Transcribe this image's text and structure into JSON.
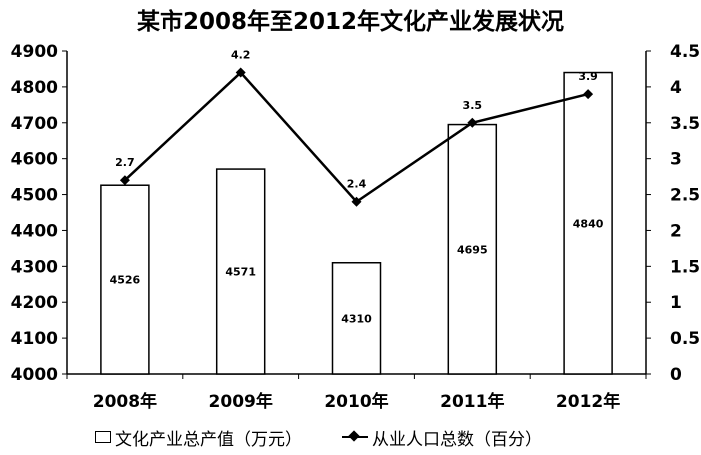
{
  "chart_data": {
    "type": "bar+line",
    "title": "某市2008年至2012年文化产业发展状况",
    "categories": [
      "2008年",
      "2009年",
      "2010年",
      "2011年",
      "2012年"
    ],
    "series": [
      {
        "name": "文化产业总产值（万元）",
        "type": "bar",
        "axis": "left",
        "values": [
          4526,
          4571,
          4310,
          4695,
          4840
        ],
        "labels": [
          "4526",
          "4571",
          "4310",
          "4695",
          "4840"
        ]
      },
      {
        "name": "从业人口总数（百分）",
        "type": "line",
        "axis": "right",
        "marker": "diamond",
        "values": [
          2.7,
          4.2,
          2.4,
          3.5,
          3.9
        ],
        "labels": [
          "2.7",
          "4.2",
          "2.4",
          "3.5",
          "3.9"
        ]
      }
    ],
    "y_left": {
      "min": 4000,
      "max": 4900,
      "ticks": [
        "4000",
        "4100",
        "4200",
        "4300",
        "4400",
        "4500",
        "4600",
        "4700",
        "4800",
        "4900"
      ]
    },
    "y_right": {
      "min": 0,
      "max": 4.5,
      "ticks": [
        "0",
        "0.5",
        "1",
        "1.5",
        "2",
        "2.5",
        "3",
        "3.5",
        "4",
        "4.5"
      ]
    },
    "grid": false,
    "legend_position": "bottom",
    "colors": {
      "bar_fill": "#ffffff",
      "bar_stroke": "#000000",
      "line": "#000000",
      "axis": "#000000"
    }
  }
}
